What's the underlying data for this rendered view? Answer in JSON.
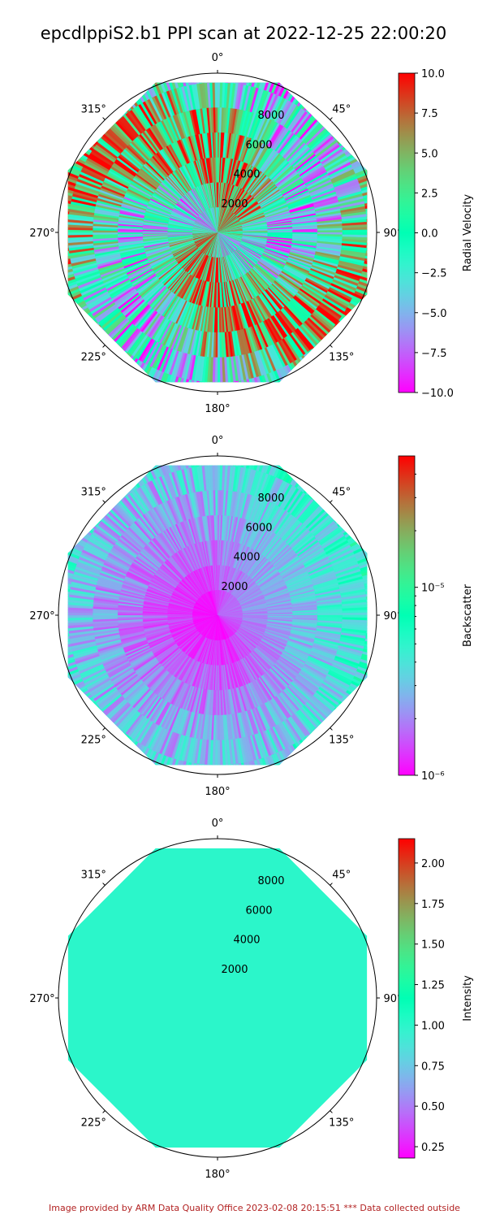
{
  "title": "epcdlppiS2.b1 PPI scan at 2022-12-25 22:00:20",
  "footer": {
    "text": "Image provided by ARM Data Quality Office 2023-02-08 20:15:51    *** Data collected outside",
    "color": "#b22222"
  },
  "chart_data": [
    {
      "type": "heatmap",
      "projection": "polar",
      "theta_direction": "clockwise",
      "theta_zero": "north",
      "angle_tick_labels": [
        "0°",
        "45°",
        "90°",
        "135°",
        "180°",
        "225°",
        "270°",
        "315°"
      ],
      "range_tick_labels": [
        "2000",
        "4000",
        "6000",
        "8000"
      ],
      "range_ticks": [
        2000,
        4000,
        6000,
        8000
      ],
      "rmax": 10000,
      "data_rmax": 9400,
      "colormap": "rainbow",
      "colorbar": {
        "label": "Radial Velocity",
        "scale": "linear",
        "range": [
          -10.0,
          10.0
        ],
        "ticks": [
          -10.0,
          -7.5,
          -5.0,
          -2.5,
          0.0,
          2.5,
          5.0,
          7.5,
          10.0
        ],
        "tick_labels": [
          "−10.0",
          "−7.5",
          "−5.0",
          "−2.5",
          "0.0",
          "2.5",
          "5.0",
          "7.5",
          "10.0"
        ]
      }
    },
    {
      "type": "heatmap",
      "projection": "polar",
      "theta_direction": "clockwise",
      "theta_zero": "north",
      "angle_tick_labels": [
        "0°",
        "45°",
        "90°",
        "135°",
        "180°",
        "225°",
        "270°",
        "315°"
      ],
      "range_tick_labels": [
        "2000",
        "4000",
        "6000",
        "8000"
      ],
      "range_ticks": [
        2000,
        4000,
        6000,
        8000
      ],
      "rmax": 10000,
      "data_rmax": 9400,
      "colormap": "rainbow",
      "colorbar": {
        "label": "Backscatter",
        "scale": "log",
        "range": [
          1e-06,
          5e-05
        ],
        "ticks": [
          1e-06,
          1e-05
        ],
        "tick_labels": [
          "10⁻⁶",
          "10⁻⁵"
        ]
      }
    },
    {
      "type": "heatmap",
      "projection": "polar",
      "theta_direction": "clockwise",
      "theta_zero": "north",
      "angle_tick_labels": [
        "0°",
        "45°",
        "90°",
        "135°",
        "180°",
        "225°",
        "270°",
        "315°"
      ],
      "range_tick_labels": [
        "2000",
        "4000",
        "6000",
        "8000"
      ],
      "range_ticks": [
        2000,
        4000,
        6000,
        8000
      ],
      "rmax": 10000,
      "data_rmax": 9400,
      "colormap": "rainbow",
      "uniform_value": 1.0,
      "colorbar": {
        "label": "Intensity",
        "scale": "linear",
        "range": [
          0.18,
          2.15
        ],
        "ticks": [
          0.25,
          0.5,
          0.75,
          1.0,
          1.25,
          1.5,
          1.75,
          2.0
        ],
        "tick_labels": [
          "0.25",
          "0.50",
          "0.75",
          "1.00",
          "1.25",
          "1.50",
          "1.75",
          "2.00"
        ]
      }
    }
  ]
}
